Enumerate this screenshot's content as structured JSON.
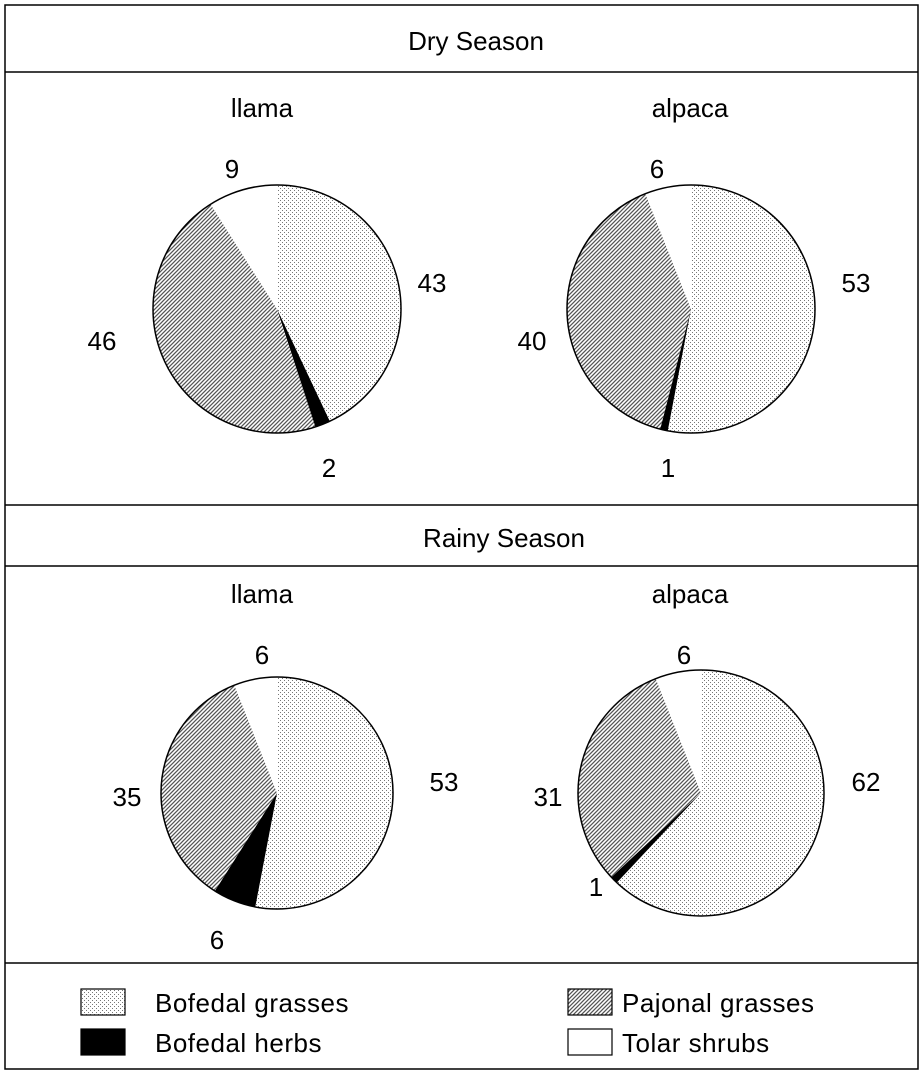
{
  "chart_data": [
    {
      "type": "pie",
      "panel": "Dry Season",
      "title": "llama",
      "categories": [
        "Bofedal grasses",
        "Bofedal herbs",
        "Pajonal grasses",
        "Tolar shrubs"
      ],
      "values": [
        43,
        2,
        46,
        9
      ],
      "value_labels": [
        "43",
        "2",
        "46",
        "9"
      ]
    },
    {
      "type": "pie",
      "panel": "Dry Season",
      "title": "alpaca",
      "categories": [
        "Bofedal grasses",
        "Bofedal herbs",
        "Pajonal grasses",
        "Tolar shrubs"
      ],
      "values": [
        53,
        1,
        40,
        6
      ],
      "value_labels": [
        "53",
        "1",
        "40",
        "6"
      ]
    },
    {
      "type": "pie",
      "panel": "Rainy Season",
      "title": "llama",
      "categories": [
        "Bofedal grasses",
        "Bofedal herbs",
        "Pajonal grasses",
        "Tolar shrubs"
      ],
      "values": [
        53,
        6,
        35,
        6
      ],
      "value_labels": [
        "53",
        "6",
        "35",
        "6"
      ]
    },
    {
      "type": "pie",
      "panel": "Rainy Season",
      "title": "alpaca",
      "categories": [
        "Bofedal grasses",
        "Bofedal herbs",
        "Pajonal grasses",
        "Tolar shrubs"
      ],
      "values": [
        62,
        1,
        31,
        6
      ],
      "value_labels": [
        "62",
        "1",
        "31",
        "6"
      ]
    }
  ],
  "panels": {
    "dry": {
      "header": "Dry Season",
      "left_title": "llama",
      "right_title": "alpaca"
    },
    "rainy": {
      "header": "Rainy Season",
      "left_title": "llama",
      "right_title": "alpaca"
    }
  },
  "legend": {
    "items": [
      {
        "label": "Bofedal grasses",
        "fill": "dotted"
      },
      {
        "label": "Pajonal grasses",
        "fill": "hatched"
      },
      {
        "label": "Bofedal herbs",
        "fill": "solid"
      },
      {
        "label": "Tolar shrubs",
        "fill": "empty"
      }
    ]
  },
  "colors": {
    "outline": "#000000",
    "bofedal_grasses": "#d9d9d9",
    "pajonal_grasses": "#a6a6a6",
    "bofedal_herbs": "#000000",
    "tolar_shrubs": "#ffffff"
  }
}
